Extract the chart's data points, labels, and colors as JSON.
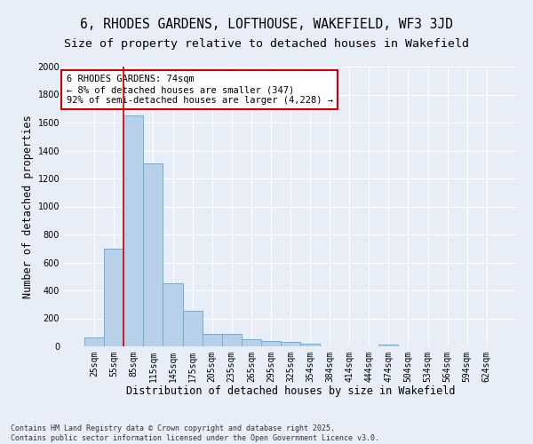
{
  "title_line1": "6, RHODES GARDENS, LOFTHOUSE, WAKEFIELD, WF3 3JD",
  "title_line2": "Size of property relative to detached houses in Wakefield",
  "xlabel": "Distribution of detached houses by size in Wakefield",
  "ylabel": "Number of detached properties",
  "bar_color": "#b8d0ea",
  "bar_edge_color": "#6aaed6",
  "background_color": "#e8eef8",
  "grid_color": "#ffffff",
  "categories": [
    "25sqm",
    "55sqm",
    "85sqm",
    "115sqm",
    "145sqm",
    "175sqm",
    "205sqm",
    "235sqm",
    "265sqm",
    "295sqm",
    "325sqm",
    "354sqm",
    "384sqm",
    "414sqm",
    "444sqm",
    "474sqm",
    "504sqm",
    "534sqm",
    "564sqm",
    "594sqm",
    "624sqm"
  ],
  "values": [
    65,
    700,
    1650,
    1310,
    450,
    255,
    90,
    90,
    50,
    40,
    30,
    20,
    0,
    0,
    0,
    15,
    0,
    0,
    0,
    0,
    0
  ],
  "annotation_text": "6 RHODES GARDENS: 74sqm\n← 8% of detached houses are smaller (347)\n92% of semi-detached houses are larger (4,228) →",
  "annotation_box_color": "#ffffff",
  "annotation_box_edge": "#cc0000",
  "vline_color": "#cc0000",
  "vline_x": 1.5,
  "footer_line1": "Contains HM Land Registry data © Crown copyright and database right 2025.",
  "footer_line2": "Contains public sector information licensed under the Open Government Licence v3.0.",
  "ylim": [
    0,
    2000
  ],
  "yticks": [
    0,
    200,
    400,
    600,
    800,
    1000,
    1200,
    1400,
    1600,
    1800,
    2000
  ],
  "title_fontsize": 10.5,
  "subtitle_fontsize": 9.5,
  "axis_label_fontsize": 8.5,
  "tick_fontsize": 7,
  "annotation_fontsize": 7.5,
  "footer_fontsize": 6
}
